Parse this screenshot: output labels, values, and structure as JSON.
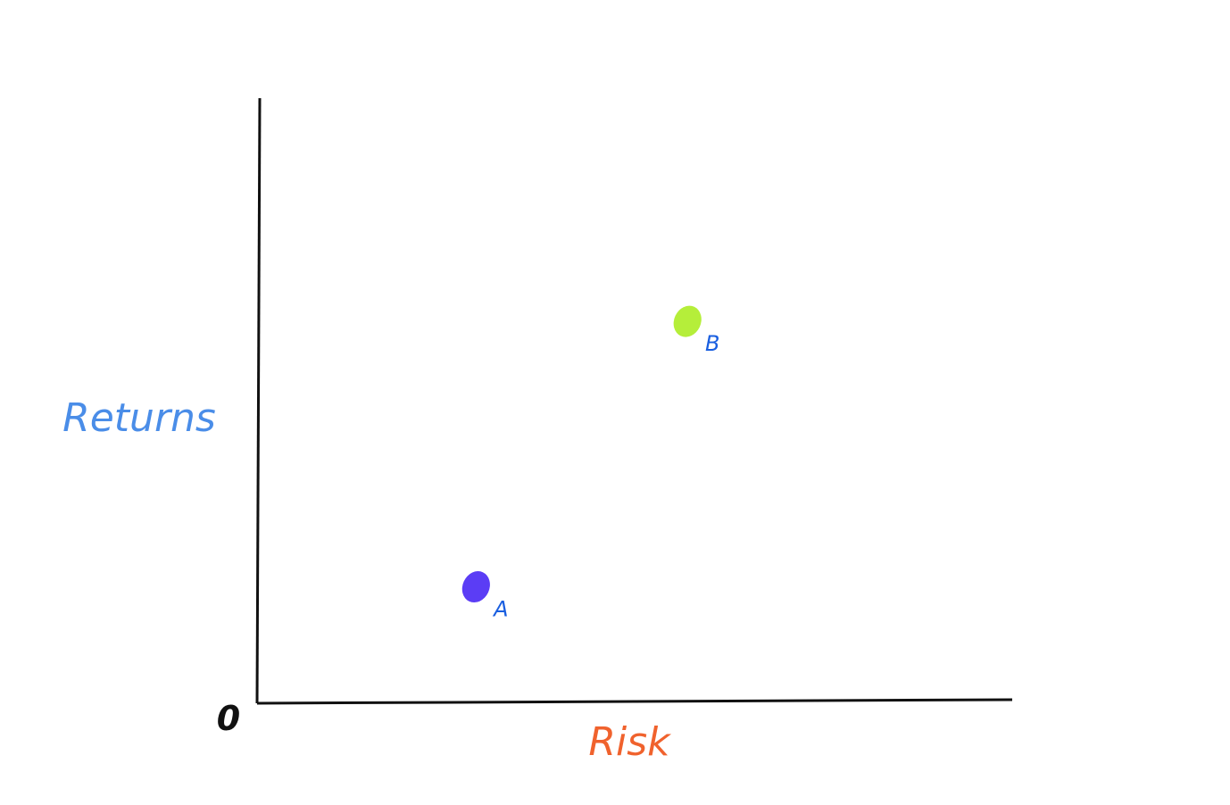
{
  "chart_data": {
    "type": "scatter",
    "title": "",
    "xlabel": "Risk",
    "ylabel": "Returns",
    "origin_label": "0",
    "xlim": [
      0,
      100
    ],
    "ylim": [
      0,
      100
    ],
    "grid": false,
    "legend": "none",
    "points": [
      {
        "label": "A",
        "x": 29,
        "y": 19,
        "color": "#5b3df5"
      },
      {
        "label": "B",
        "x": 57,
        "y": 63,
        "color": "#b5ee3a"
      }
    ],
    "colors": {
      "axis": "#111111",
      "xlabel": "#f0622d",
      "ylabel": "#4a8de8",
      "point_label": "#1a5fe0",
      "origin": "#111111"
    }
  }
}
